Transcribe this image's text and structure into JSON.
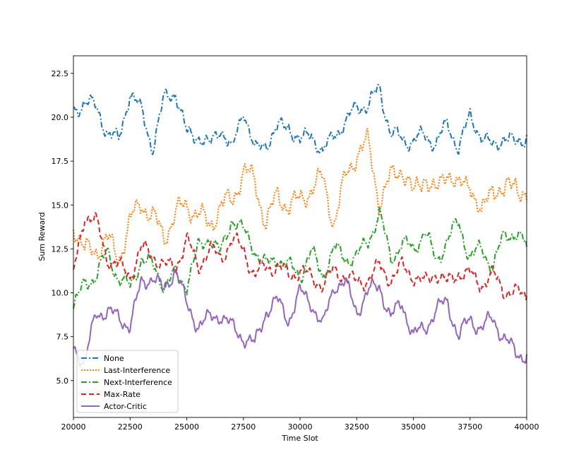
{
  "chart_data": {
    "type": "line",
    "title": "",
    "xlabel": "Time Slot",
    "ylabel": "Sum Reward",
    "xlim": [
      20000,
      40000
    ],
    "ylim": [
      2.9,
      23.5
    ],
    "x_ticks": [
      20000,
      22500,
      25000,
      27500,
      30000,
      32500,
      35000,
      37500,
      40000
    ],
    "y_ticks": [
      5.0,
      7.5,
      10.0,
      12.5,
      15.0,
      17.5,
      20.0,
      22.5
    ],
    "x_tick_labels": [
      "20000",
      "22500",
      "25000",
      "27500",
      "30000",
      "32500",
      "35000",
      "37500",
      "40000"
    ],
    "y_tick_labels": [
      "5.0",
      "7.5",
      "10.0",
      "12.5",
      "15.0",
      "17.5",
      "20.0",
      "22.5"
    ],
    "legend_position": "bottom-left",
    "x": [
      20000,
      20500,
      21000,
      21500,
      22000,
      22500,
      23000,
      23500,
      24000,
      24500,
      25000,
      25500,
      26000,
      26500,
      27000,
      27500,
      28000,
      28500,
      29000,
      29500,
      30000,
      30500,
      31000,
      31500,
      32000,
      32500,
      33000,
      33500,
      34000,
      34500,
      35000,
      35500,
      36000,
      36500,
      37000,
      37500,
      38000,
      38500,
      39000,
      39500,
      40000
    ],
    "series": [
      {
        "name": "None",
        "color": "#1f77b4",
        "dash": "8,3,2,3",
        "values": [
          20.2,
          21.0,
          20.5,
          19.2,
          18.6,
          21.5,
          20.3,
          18.3,
          21.0,
          21.5,
          19.0,
          19.0,
          18.3,
          19.5,
          18.0,
          20.6,
          18.0,
          18.6,
          19.3,
          19.6,
          18.5,
          19.2,
          17.8,
          19.2,
          19.5,
          20.8,
          20.5,
          21.8,
          19.0,
          18.8,
          18.6,
          19.0,
          18.5,
          19.6,
          18.3,
          20.0,
          19.0,
          18.2,
          19.0,
          18.4,
          19.0
        ]
      },
      {
        "name": "Last-Interference",
        "color": "#ff7f0e",
        "dash": "2,2",
        "values": [
          14.0,
          12.3,
          12.5,
          13.0,
          12.0,
          14.0,
          15.2,
          14.3,
          13.2,
          14.5,
          15.0,
          14.5,
          13.8,
          15.0,
          15.2,
          17.0,
          16.3,
          14.0,
          15.5,
          15.0,
          15.2,
          16.0,
          16.5,
          14.0,
          16.5,
          18.0,
          18.5,
          15.2,
          16.5,
          17.2,
          15.5,
          16.8,
          15.5,
          17.2,
          15.8,
          16.5,
          14.2,
          16.3,
          15.5,
          16.5,
          15.2
        ]
      },
      {
        "name": "Next-Interference",
        "color": "#2ca02c",
        "dash": "8,3,2,3",
        "values": [
          9.2,
          10.5,
          11.0,
          12.3,
          10.8,
          10.3,
          12.0,
          11.5,
          10.5,
          11.0,
          10.5,
          12.5,
          13.2,
          12.2,
          14.3,
          13.5,
          12.5,
          11.5,
          12.0,
          11.5,
          11.0,
          12.3,
          11.0,
          12.5,
          12.0,
          12.0,
          13.0,
          14.5,
          12.0,
          12.8,
          12.5,
          13.5,
          11.8,
          13.0,
          14.0,
          12.0,
          12.5,
          11.5,
          13.2,
          13.5,
          12.6
        ]
      },
      {
        "name": "Max-Rate",
        "color": "#d62728",
        "dash": "7,4",
        "values": [
          11.0,
          14.5,
          14.0,
          12.0,
          11.5,
          11.0,
          12.5,
          12.2,
          11.5,
          11.5,
          13.0,
          11.5,
          12.5,
          12.0,
          13.0,
          12.5,
          11.0,
          11.5,
          11.5,
          11.0,
          11.3,
          10.8,
          10.5,
          11.2,
          11.0,
          10.5,
          10.8,
          11.5,
          10.8,
          11.5,
          11.0,
          10.5,
          11.2,
          10.5,
          11.2,
          11.0,
          10.5,
          11.0,
          10.2,
          10.0,
          9.8
        ]
      },
      {
        "name": "Actor-Critic",
        "color": "#9467bd",
        "dash": "",
        "values": [
          7.0,
          6.0,
          8.8,
          9.0,
          8.5,
          8.2,
          10.5,
          11.0,
          10.0,
          11.5,
          9.2,
          8.2,
          8.5,
          8.8,
          8.0,
          7.5,
          7.0,
          9.0,
          9.5,
          8.5,
          10.0,
          9.5,
          8.0,
          10.5,
          10.5,
          9.0,
          10.0,
          10.5,
          8.5,
          9.5,
          7.5,
          8.0,
          9.0,
          9.5,
          7.5,
          8.5,
          8.0,
          8.5,
          7.5,
          6.5,
          6.5
        ]
      }
    ]
  }
}
